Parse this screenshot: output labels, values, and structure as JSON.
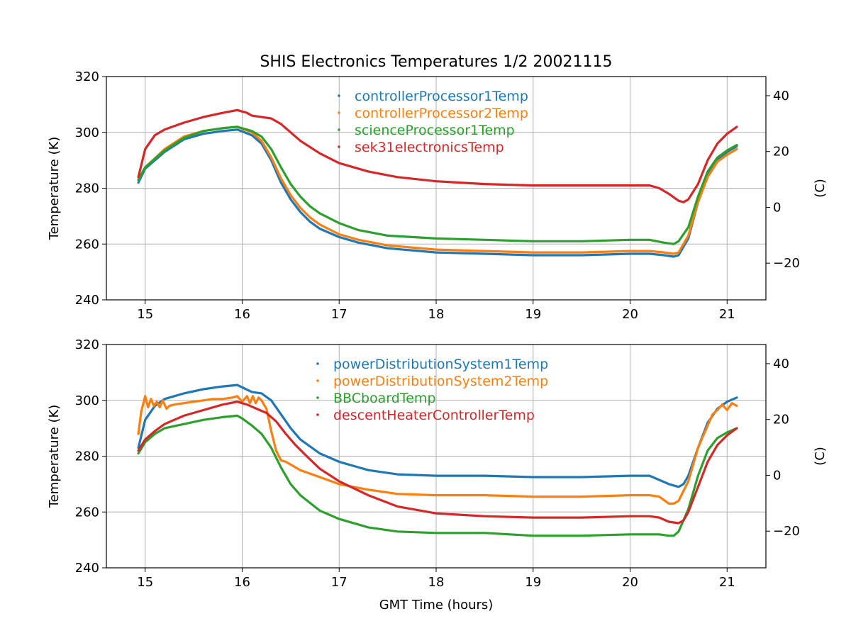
{
  "figure_title": "SHIS Electronics Temperatures 1/2 20021115",
  "chart_data": [
    {
      "type": "line",
      "title": "SHIS Electronics Temperatures 1/2 20021115",
      "xlabel": "",
      "ylabel": "Temperature (K)",
      "ylabel_right": "(C)",
      "xlim": [
        14.6,
        21.4
      ],
      "ylim": [
        240,
        320
      ],
      "right_ylim": [
        -33.15,
        46.85
      ],
      "grid": true,
      "legend_position": "top-center",
      "xticks": [
        "15",
        "16",
        "17",
        "18",
        "19",
        "20",
        "21"
      ],
      "yticks": [
        "240",
        "260",
        "280",
        "300",
        "320"
      ],
      "right_yticks": [
        "−20",
        "0",
        "20",
        "40"
      ],
      "series": [
        {
          "name": "controllerProcessor1Temp",
          "color": "#1f77b4",
          "x": [
            14.93,
            15.0,
            15.2,
            15.4,
            15.6,
            15.8,
            15.95,
            16.1,
            16.2,
            16.3,
            16.4,
            16.5,
            16.6,
            16.7,
            16.8,
            17.0,
            17.2,
            17.5,
            18.0,
            18.5,
            19.0,
            19.5,
            20.0,
            20.2,
            20.35,
            20.45,
            20.5,
            20.6,
            20.7,
            20.8,
            20.9,
            21.0,
            21.1
          ],
          "y": [
            282,
            287,
            293,
            297.5,
            299.5,
            300.5,
            301,
            299,
            296,
            290,
            282,
            276,
            271.5,
            268,
            265.5,
            262.5,
            260.5,
            258.5,
            257,
            256.5,
            256,
            256,
            256.5,
            256.5,
            256,
            255.5,
            256,
            262,
            275,
            285,
            290,
            293,
            295
          ]
        },
        {
          "name": "controllerProcessor2Temp",
          "color": "#ff7f0e",
          "x": [
            14.93,
            15.0,
            15.2,
            15.4,
            15.6,
            15.8,
            15.95,
            16.1,
            16.2,
            16.3,
            16.4,
            16.5,
            16.6,
            16.7,
            16.8,
            17.0,
            17.2,
            17.5,
            18.0,
            18.5,
            19.0,
            19.5,
            20.0,
            20.2,
            20.35,
            20.45,
            20.5,
            20.6,
            20.7,
            20.8,
            20.9,
            21.0,
            21.1
          ],
          "y": [
            283,
            287.5,
            294,
            298.5,
            300.5,
            301.5,
            302,
            300,
            297,
            291,
            283.5,
            277.5,
            273,
            269.5,
            267,
            263.5,
            261.5,
            259.5,
            258,
            257.5,
            257,
            257,
            257.5,
            257.5,
            257,
            256.5,
            257,
            263,
            275,
            284,
            289.5,
            292,
            294
          ]
        },
        {
          "name": "scienceProcessor1Temp",
          "color": "#2ca02c",
          "x": [
            14.93,
            15.0,
            15.2,
            15.4,
            15.6,
            15.8,
            15.95,
            16.1,
            16.2,
            16.3,
            16.4,
            16.5,
            16.6,
            16.7,
            16.8,
            17.0,
            17.2,
            17.5,
            18.0,
            18.5,
            19.0,
            19.5,
            20.0,
            20.2,
            20.35,
            20.45,
            20.5,
            20.6,
            20.7,
            20.8,
            20.9,
            21.0,
            21.1
          ],
          "y": [
            283,
            287.5,
            293.5,
            298,
            300.5,
            301.5,
            302,
            300.5,
            298.5,
            294,
            287.5,
            281.5,
            277,
            273.5,
            271,
            267.5,
            265,
            263,
            262,
            261.5,
            261,
            261,
            261.5,
            261.5,
            260.5,
            260,
            261,
            266,
            277,
            286,
            291,
            293.5,
            295.5
          ]
        },
        {
          "name": "sek31electronicsTemp",
          "color": "#d62728",
          "x": [
            14.93,
            15.0,
            15.1,
            15.2,
            15.4,
            15.6,
            15.8,
            15.95,
            16.05,
            16.1,
            16.2,
            16.3,
            16.4,
            16.6,
            16.8,
            17.0,
            17.3,
            17.6,
            18.0,
            18.5,
            19.0,
            19.5,
            20.0,
            20.2,
            20.3,
            20.4,
            20.5,
            20.55,
            20.6,
            20.7,
            20.8,
            20.9,
            21.0,
            21.1
          ],
          "y": [
            284,
            294,
            299,
            301,
            303.5,
            305.5,
            307,
            308,
            307,
            306,
            305.5,
            305,
            303,
            297,
            292.5,
            289,
            286,
            284,
            282.5,
            281.5,
            281,
            281,
            281,
            281,
            280,
            278,
            275.5,
            275,
            276,
            281.5,
            290,
            296,
            299.5,
            302
          ]
        }
      ]
    },
    {
      "type": "line",
      "title": "",
      "xlabel": "GMT Time (hours)",
      "ylabel": "Temperature (K)",
      "ylabel_right": "(C)",
      "xlim": [
        14.6,
        21.4
      ],
      "ylim": [
        240,
        320
      ],
      "right_ylim": [
        -33.15,
        46.85
      ],
      "grid": true,
      "legend_position": "top-center",
      "xticks": [
        "15",
        "16",
        "17",
        "18",
        "19",
        "20",
        "21"
      ],
      "yticks": [
        "240",
        "260",
        "280",
        "300",
        "320"
      ],
      "right_yticks": [
        "−20",
        "0",
        "20",
        "40"
      ],
      "series": [
        {
          "name": "powerDistributionSystem1Temp",
          "color": "#1f77b4",
          "x": [
            14.93,
            15.0,
            15.1,
            15.2,
            15.4,
            15.6,
            15.8,
            15.95,
            16.1,
            16.2,
            16.3,
            16.4,
            16.5,
            16.6,
            16.8,
            17.0,
            17.3,
            17.6,
            18.0,
            18.5,
            19.0,
            19.5,
            20.0,
            20.2,
            20.3,
            20.4,
            20.5,
            20.55,
            20.6,
            20.7,
            20.8,
            20.9,
            21.0,
            21.1
          ],
          "y": [
            283,
            293,
            298,
            300.5,
            302.5,
            304,
            305,
            305.5,
            303,
            302.5,
            300,
            295,
            290,
            286,
            281,
            278,
            275,
            273.5,
            273,
            273,
            272.5,
            272.5,
            273,
            273,
            271.5,
            270,
            269,
            270,
            273,
            283,
            292,
            297,
            299.5,
            301
          ]
        },
        {
          "name": "powerDistributionSystem2Temp",
          "color": "#ff7f0e",
          "x": [
            14.93,
            14.96,
            15.0,
            15.03,
            15.06,
            15.09,
            15.12,
            15.15,
            15.18,
            15.22,
            15.25,
            15.3,
            15.4,
            15.5,
            15.6,
            15.7,
            15.8,
            15.9,
            15.95,
            16.0,
            16.05,
            16.08,
            16.11,
            16.14,
            16.17,
            16.2,
            16.25,
            16.3,
            16.35,
            16.4,
            16.45,
            16.5,
            16.6,
            16.8,
            17.0,
            17.3,
            17.6,
            18.0,
            18.5,
            19.0,
            19.5,
            20.0,
            20.2,
            20.3,
            20.4,
            20.45,
            20.5,
            20.6,
            20.7,
            20.8,
            20.85,
            20.9,
            20.95,
            21.0,
            21.05,
            21.1
          ],
          "y": [
            288,
            296,
            301.5,
            297.5,
            300.5,
            298,
            299.5,
            297.5,
            300,
            297,
            298,
            298.5,
            299,
            299.5,
            300,
            300.5,
            300.5,
            301,
            301.5,
            299.5,
            301.5,
            299,
            301.5,
            299,
            301,
            300,
            297,
            289,
            282,
            278.5,
            278,
            277,
            275,
            272.5,
            270,
            268,
            266.5,
            266,
            266,
            265.5,
            265.5,
            266,
            266,
            265.5,
            263,
            263,
            264,
            271,
            283,
            291,
            295,
            296.5,
            298.5,
            296.5,
            299,
            298
          ]
        },
        {
          "name": "BBCboardTemp",
          "color": "#2ca02c",
          "x": [
            14.93,
            15.0,
            15.1,
            15.2,
            15.4,
            15.6,
            15.8,
            15.95,
            16.0,
            16.1,
            16.2,
            16.3,
            16.4,
            16.5,
            16.6,
            16.8,
            17.0,
            17.3,
            17.6,
            18.0,
            18.5,
            19.0,
            19.5,
            20.0,
            20.2,
            20.3,
            20.4,
            20.45,
            20.5,
            20.6,
            20.7,
            20.8,
            20.9,
            21.0,
            21.1
          ],
          "y": [
            281,
            285,
            288,
            290,
            291.5,
            293,
            294,
            294.5,
            293.5,
            291,
            288,
            283,
            276,
            270,
            266,
            260.5,
            257.5,
            254.5,
            253,
            252.5,
            252.5,
            251.5,
            251.5,
            252,
            252,
            252,
            251.5,
            251.5,
            253,
            261,
            273,
            282,
            286.5,
            288.5,
            290
          ]
        },
        {
          "name": "descentHeaterControllerTemp",
          "color": "#d62728",
          "x": [
            14.93,
            15.0,
            15.1,
            15.2,
            15.4,
            15.6,
            15.8,
            15.95,
            16.05,
            16.15,
            16.25,
            16.35,
            16.45,
            16.55,
            16.65,
            16.8,
            17.0,
            17.3,
            17.6,
            18.0,
            18.5,
            19.0,
            19.5,
            20.0,
            20.2,
            20.3,
            20.4,
            20.5,
            20.55,
            20.6,
            20.7,
            20.8,
            20.9,
            21.0,
            21.1
          ],
          "y": [
            282,
            286,
            289,
            291.5,
            294.5,
            296.5,
            298.5,
            299.5,
            298.5,
            297,
            295.5,
            292.5,
            288,
            284,
            280.5,
            275.5,
            271,
            266,
            262,
            259.5,
            258.5,
            258,
            258,
            258.5,
            258.5,
            258,
            256.5,
            256,
            257,
            260,
            269,
            278,
            284,
            287.5,
            290
          ]
        }
      ]
    }
  ]
}
